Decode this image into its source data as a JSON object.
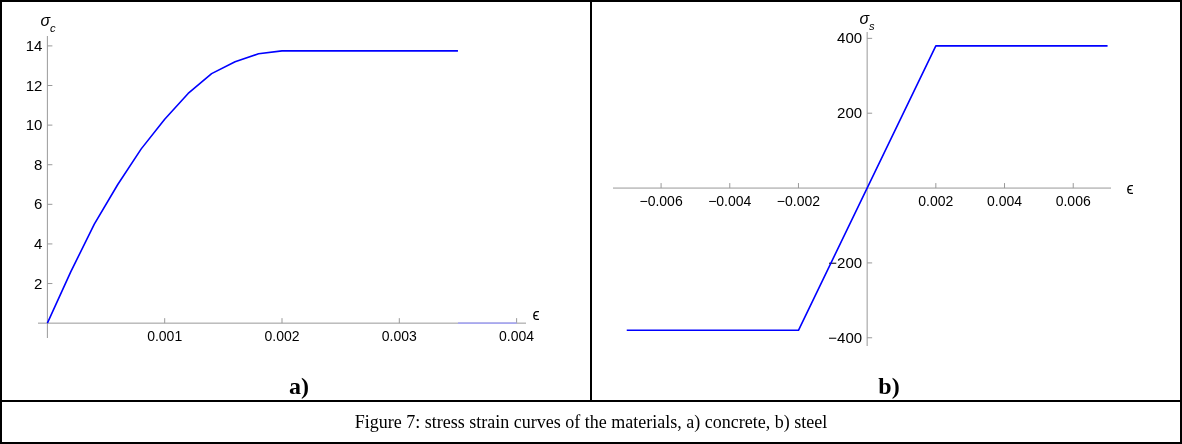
{
  "chart_data": [
    {
      "type": "line",
      "title": "a)",
      "xlabel": "ϵ",
      "ylabel": "σ$_{c}$",
      "xlim": [
        -8e-05,
        0.00408
      ],
      "ylim": [
        -0.75,
        14.5
      ],
      "xticks": [
        0.001,
        0.002,
        0.003,
        0.004
      ],
      "yticks": [
        2,
        4,
        6,
        8,
        10,
        12,
        14
      ],
      "annotations": [
        "Figure 7: stress strain curves of the materials, a) concrete, b) steel"
      ],
      "series": [
        {
          "color": "#0000ff",
          "x": [
            0,
            0.0002,
            0.0004,
            0.0006,
            0.0008,
            0.001,
            0.0012,
            0.0014,
            0.0016,
            0.0018,
            0.002,
            0.0035
          ],
          "values": [
            0,
            2.6,
            5.0,
            7.0,
            8.8,
            10.3,
            11.6,
            12.6,
            13.2,
            13.6,
            13.75,
            13.75
          ]
        },
        {
          "color": "#a8a8f0",
          "x": [
            0.0035,
            0.004
          ],
          "values": [
            0,
            0
          ]
        }
      ]
    },
    {
      "type": "line",
      "title": "b)",
      "xlabel": "ϵ",
      "ylabel": "σ$_{s}$",
      "xlim": [
        -0.0074,
        0.0071
      ],
      "ylim": [
        -422,
        417
      ],
      "xticks": [
        {
          "value": -0.006,
          "label": "−0.006"
        },
        {
          "value": -0.004,
          "label": "−0.004"
        },
        {
          "value": -0.002,
          "label": "−0.002"
        },
        0.002,
        0.004,
        0.006
      ],
      "yticks": [
        {
          "value": -400,
          "label": "−400"
        },
        {
          "value": -200,
          "label": "−200"
        },
        200,
        400
      ],
      "series": [
        {
          "color": "#0000ff",
          "x": [
            -0.007,
            -0.002,
            0.002,
            0.007
          ],
          "values": [
            -380,
            -380,
            380,
            380
          ]
        }
      ]
    }
  ]
}
